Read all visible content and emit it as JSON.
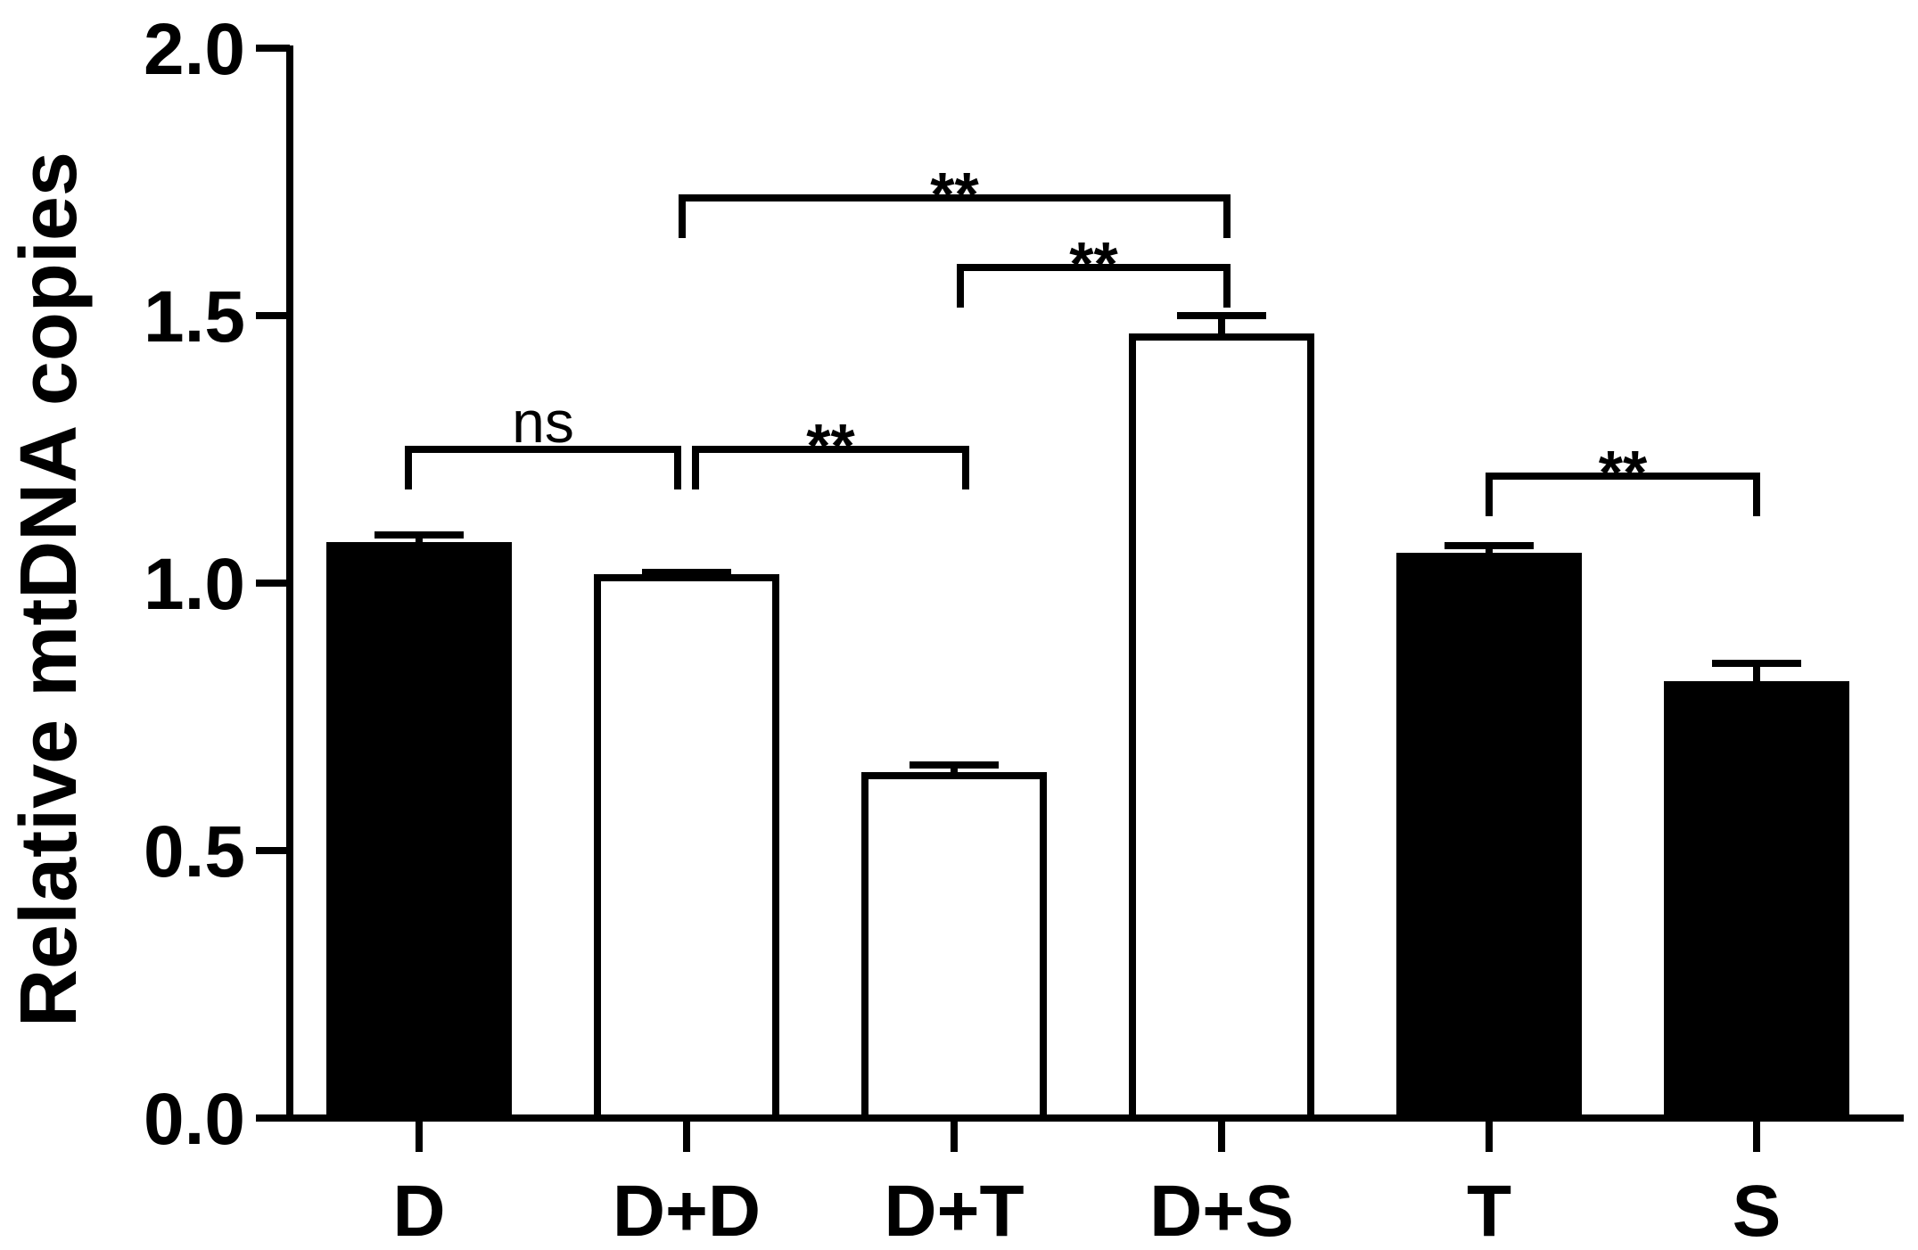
{
  "chart_data": {
    "type": "bar",
    "title": "",
    "xlabel": "",
    "ylabel": "Relative mtDNA copies",
    "ylim": [
      0,
      2.0
    ],
    "yticks": [
      0.0,
      0.5,
      1.0,
      1.5,
      2.0
    ],
    "ytick_labels": [
      "0.0",
      "0.5",
      "1.0",
      "1.5",
      "2.0"
    ],
    "categories": [
      "D",
      "D+D",
      "D+T",
      "D+S",
      "T",
      "S"
    ],
    "values": [
      1.07,
      1.01,
      0.64,
      1.46,
      1.05,
      0.81
    ],
    "errors": [
      0.02,
      0.01,
      0.02,
      0.04,
      0.02,
      0.04
    ],
    "fills": [
      "#000000",
      "#ffffff",
      "#ffffff",
      "#ffffff",
      "#000000",
      "#000000"
    ],
    "grid": false,
    "comparisons": [
      {
        "from": "D",
        "to": "D+D",
        "label": "ns",
        "level": 1.25
      },
      {
        "from": "D+D",
        "to": "D+T",
        "label": "**",
        "level": 1.25
      },
      {
        "from": "D+T",
        "to": "D+S",
        "label": "**",
        "level": 1.59
      },
      {
        "from": "D+D",
        "to": "D+S",
        "label": "**",
        "level": 1.72
      },
      {
        "from": "T",
        "to": "S",
        "label": "**",
        "level": 1.2
      }
    ]
  },
  "colors": {
    "axis": "#000000",
    "dark_bar": "#000000",
    "light_bar": "#ffffff"
  }
}
